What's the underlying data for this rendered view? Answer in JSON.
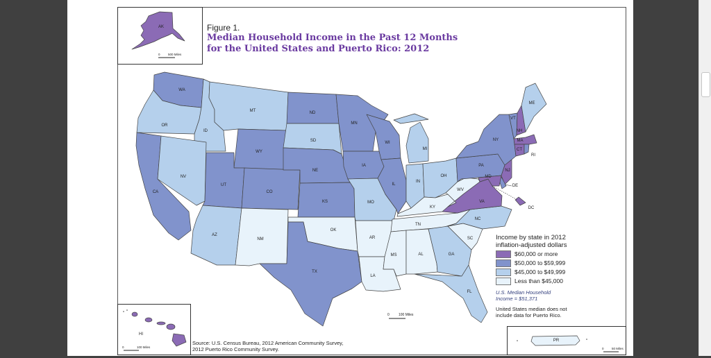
{
  "figure": {
    "label": "Figure 1.",
    "title_line1": "Median Household Income in the Past 12 Months",
    "title_line2": "for the United States and Puerto Rico: 2012"
  },
  "legend": {
    "title_line1": "Income by state in 2012",
    "title_line2": "inflation-adjusted dollars",
    "categories": [
      {
        "label": "$60,000 or more",
        "color": "#8b6bb5"
      },
      {
        "label": "$50,000 to $59,999",
        "color": "#8193cc"
      },
      {
        "label": "$45,000 to $49,999",
        "color": "#b5d0ec"
      },
      {
        "label": "Less than $45,000",
        "color": "#e8f3fb"
      }
    ],
    "median_line1": "U.S. Median Household",
    "median_line2": "Income = $51,371",
    "note_line1": "United States median does not",
    "note_line2": "include data for Puerto Rico."
  },
  "source": {
    "line1": "Source: U.S. Census Bureau, 2012 American Community Survey,",
    "line2": "2012 Puerto Rico Community Survey."
  },
  "scales": {
    "main": "100 Miles",
    "alaska": "500 Miles",
    "hawaii": "100 Miles",
    "puerto_rico": "50 Miles",
    "zero": "0"
  },
  "states": {
    "AK": "AK",
    "HI": "HI",
    "PR": "PR",
    "WA": "WA",
    "OR": "OR",
    "CA": "CA",
    "ID": "ID",
    "NV": "NV",
    "MT": "MT",
    "WY": "WY",
    "UT": "UT",
    "AZ": "AZ",
    "CO": "CO",
    "NM": "NM",
    "ND": "ND",
    "SD": "SD",
    "NE": "NE",
    "KS": "KS",
    "OK": "OK",
    "TX": "TX",
    "MN": "MN",
    "IA": "IA",
    "MO": "MO",
    "AR": "AR",
    "LA": "LA",
    "WI": "WI",
    "IL": "IL",
    "MI": "MI",
    "IN": "IN",
    "OH": "OH",
    "KY": "KY",
    "TN": "TN",
    "MS": "MS",
    "AL": "AL",
    "GA": "GA",
    "FL": "FL",
    "SC": "SC",
    "NC": "NC",
    "VA": "VA",
    "WV": "WV",
    "PA": "PA",
    "NY": "NY",
    "VT": "VT",
    "NH": "NH",
    "ME": "ME",
    "MA": "MA",
    "CT": "CT",
    "RI": "RI",
    "NJ": "NJ",
    "DE": "DE",
    "MD": "MD",
    "DC": "DC"
  },
  "income_category": {
    "AK": 0,
    "HI": 0,
    "MD": 0,
    "NJ": 0,
    "CT": 0,
    "MA": 0,
    "NH": 0,
    "VA": 0,
    "DC": 0,
    "WA": 1,
    "CA": 1,
    "UT": 1,
    "WY": 1,
    "CO": 1,
    "ND": 1,
    "MN": 1,
    "NE": 1,
    "KS": 1,
    "TX": 1,
    "IA": 1,
    "WI": 1,
    "IL": 1,
    "PA": 1,
    "NY": 1,
    "VT": 1,
    "RI": 1,
    "DE": 1,
    "OR": 2,
    "ID": 2,
    "NV": 2,
    "MT": 2,
    "AZ": 2,
    "SD": 2,
    "MO": 2,
    "MI": 2,
    "IN": 2,
    "OH": 2,
    "GA": 2,
    "FL": 2,
    "NC": 2,
    "ME": 2,
    "NM": 3,
    "OK": 3,
    "AR": 3,
    "LA": 3,
    "MS": 3,
    "AL": 3,
    "TN": 3,
    "KY": 3,
    "WV": 3,
    "SC": 3,
    "PR": 3
  }
}
